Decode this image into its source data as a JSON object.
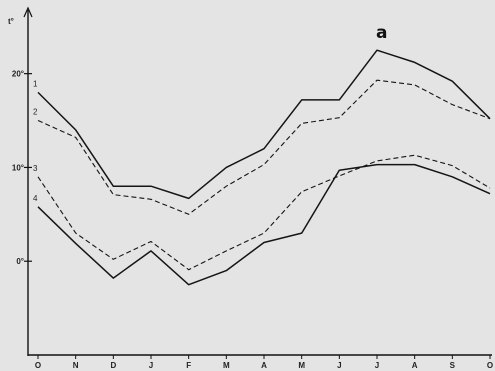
{
  "chart_data": {
    "type": "line",
    "panel_label": "a",
    "ylabel": "t°",
    "categories": [
      "O",
      "N",
      "D",
      "J",
      "F",
      "M",
      "A",
      "M",
      "J",
      "J",
      "A",
      "S",
      "O"
    ],
    "ytick_labels": [
      "0°",
      "10°",
      "20°"
    ],
    "yticks": [
      0,
      10,
      20
    ],
    "ylim": [
      -10,
      27
    ],
    "grid": false,
    "series": [
      {
        "name": "1",
        "style": "solid",
        "values": [
          18,
          14,
          8,
          8,
          6.7,
          10,
          12,
          17.2,
          17.2,
          22.5,
          21.2,
          19.2,
          15.2
        ]
      },
      {
        "name": "2",
        "style": "dashed",
        "values": [
          15,
          13.2,
          7.1,
          6.6,
          5,
          8,
          10.3,
          14.7,
          15.3,
          19.3,
          18.8,
          16.7,
          15.2
        ]
      },
      {
        "name": "3",
        "style": "dashed",
        "values": [
          9,
          3,
          0.2,
          2.1,
          -0.9,
          1.1,
          3,
          7.4,
          9.1,
          10.7,
          11.3,
          10.2,
          7.8
        ]
      },
      {
        "name": "4",
        "style": "solid",
        "values": [
          5.8,
          1.9,
          -1.8,
          1.1,
          -2.5,
          -1,
          2,
          3,
          9.7,
          10.3,
          10.3,
          9,
          7.2
        ]
      }
    ]
  }
}
